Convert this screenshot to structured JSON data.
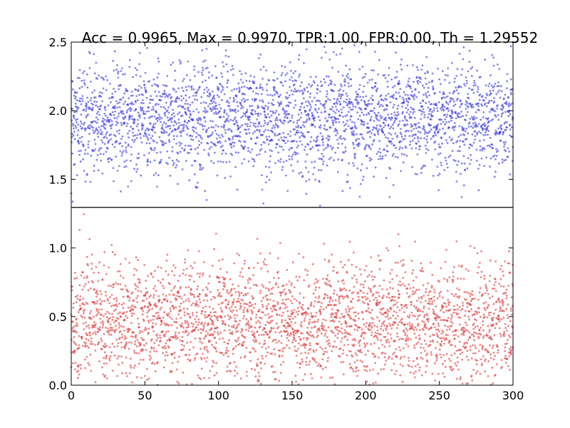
{
  "chart_data": {
    "type": "scatter",
    "title": "Acc = 0.9965, Max = 0.9970, TPR:1.00, FPR:0.00, Th = 1.29552",
    "xlabel": "",
    "ylabel": "",
    "xlim": [
      0,
      300
    ],
    "ylim": [
      0.0,
      2.5
    ],
    "threshold": 1.29552,
    "x_ticks": [
      "0",
      "50",
      "100",
      "150",
      "200",
      "250",
      "300"
    ],
    "y_ticks": [
      {
        "value": 0.0,
        "label": "0.0"
      },
      {
        "value": 0.5,
        "label": "0.5"
      },
      {
        "value": 1.0,
        "label": "1.0"
      },
      {
        "value": 1.5,
        "label": "1.5"
      },
      {
        "value": 2.0,
        "label": "2.0"
      },
      {
        "value": 2.5,
        "label": "2.5"
      }
    ],
    "grid": false,
    "series": [
      {
        "color": "#3333dd",
        "x_range": [
          0,
          300
        ],
        "points_per_unit_x": 10,
        "mean": 1.95,
        "std": 0.2,
        "y_clip": [
          1.29552,
          2.5
        ],
        "note": "dense cloud of points centered near 1.95, spread roughly 1.35 to 2.5"
      },
      {
        "color": "#dd3333",
        "x_range": [
          0,
          300
        ],
        "points_per_unit_x": 10,
        "mean": 0.45,
        "std": 0.22,
        "y_clip": [
          0.0,
          1.29552
        ],
        "note": "dense cloud of points centered near 0.45, spread roughly 0.05 to 1.25"
      }
    ]
  }
}
